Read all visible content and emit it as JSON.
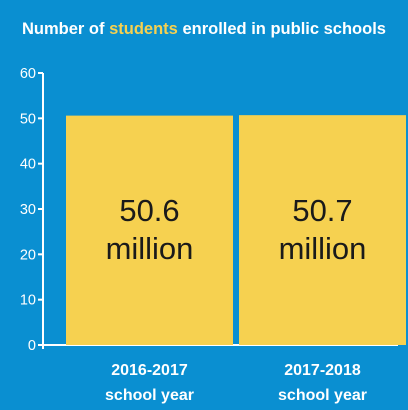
{
  "colors": {
    "background": "#0a8fd1",
    "bar": "#f6d150",
    "highlight": "#f6d150",
    "text": "#ffffff",
    "value_text": "#1a1a1a"
  },
  "chart_data": {
    "type": "bar",
    "title_parts": {
      "before": "Number of ",
      "highlight": "students",
      "after": " enrolled in public schools"
    },
    "categories": [
      [
        "2016-2017",
        "school year"
      ],
      [
        "2017-2018",
        "school year"
      ]
    ],
    "values": [
      50.6,
      50.7
    ],
    "value_labels": [
      [
        "50.6",
        "million"
      ],
      [
        "50.7",
        "million"
      ]
    ],
    "yticks": [
      0,
      10,
      20,
      30,
      40,
      50,
      60
    ],
    "ylim": [
      0,
      60
    ],
    "grid": false,
    "legend": "none"
  }
}
